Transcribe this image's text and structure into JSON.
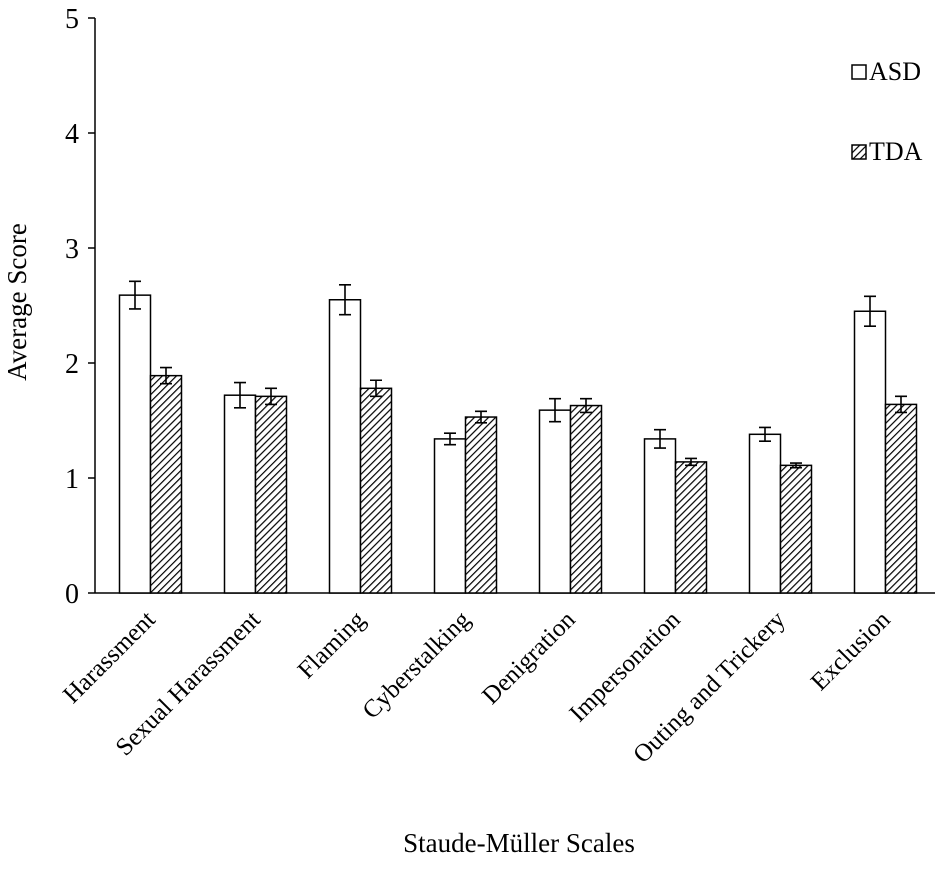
{
  "chart_data": {
    "type": "bar",
    "xlabel": "Staude-Müller Scales",
    "ylabel": "Average Score",
    "ylim": [
      0,
      5
    ],
    "yticks": [
      0,
      1,
      2,
      3,
      4,
      5
    ],
    "grid": false,
    "legend_position": "top-right",
    "categories": [
      "Harassment",
      "Sexual Harassment",
      "Flaming",
      "Cyberstalking",
      "Denigration",
      "Impersonation",
      "Outing and Trickery",
      "Exclusion"
    ],
    "series": [
      {
        "name": "ASD",
        "fill": "#ffffff",
        "pattern": "none",
        "values": [
          2.59,
          1.72,
          2.55,
          1.34,
          1.59,
          1.34,
          1.38,
          2.45
        ],
        "error": [
          0.12,
          0.11,
          0.13,
          0.05,
          0.1,
          0.08,
          0.06,
          0.13
        ]
      },
      {
        "name": "TDA",
        "fill": "#ffffff",
        "pattern": "diagonal-hatch",
        "values": [
          1.89,
          1.71,
          1.78,
          1.53,
          1.63,
          1.14,
          1.11,
          1.64
        ],
        "error": [
          0.07,
          0.07,
          0.07,
          0.05,
          0.06,
          0.03,
          0.02,
          0.07
        ]
      }
    ]
  }
}
